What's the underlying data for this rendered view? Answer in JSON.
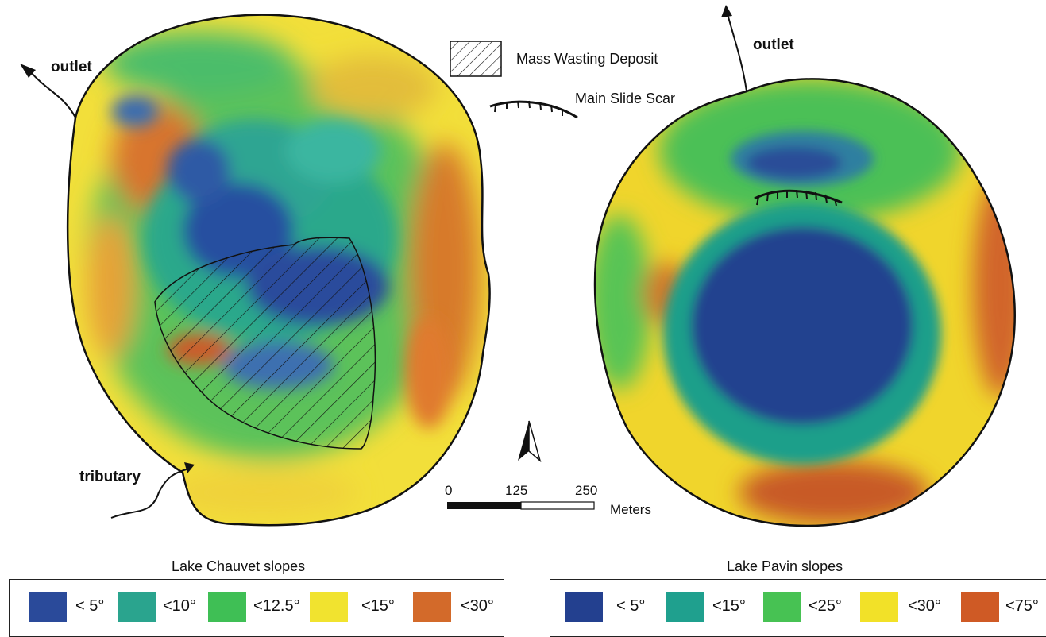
{
  "map_labels": {
    "outlet_left": "outlet",
    "outlet_right": "outlet",
    "tributary": "tributary"
  },
  "key": {
    "mass_wasting": "Mass Wasting Deposit",
    "slide_scar": "Main Slide Scar"
  },
  "scale_bar": {
    "ticks": [
      "0",
      "125",
      "250"
    ],
    "unit": "Meters"
  },
  "legend_chauvet": {
    "title": "Lake Chauvet slopes",
    "items": [
      {
        "label": "< 5°",
        "color": "#2a4a9a"
      },
      {
        "label": "<10°",
        "color": "#2aa48e"
      },
      {
        "label": "<12.5°",
        "color": "#3fbf55"
      },
      {
        "label": "<15°",
        "color": "#f1e32f"
      },
      {
        "label": "<30°",
        "color": "#d36a2a"
      }
    ]
  },
  "legend_pavin": {
    "title": "Lake Pavin slopes",
    "items": [
      {
        "label": "< 5°",
        "color": "#23408f"
      },
      {
        "label": "<15°",
        "color": "#1fa08e"
      },
      {
        "label": "<25°",
        "color": "#47c253"
      },
      {
        "label": "<30°",
        "color": "#f2e128"
      },
      {
        "label": "<75°",
        "color": "#cf5a25"
      }
    ]
  }
}
